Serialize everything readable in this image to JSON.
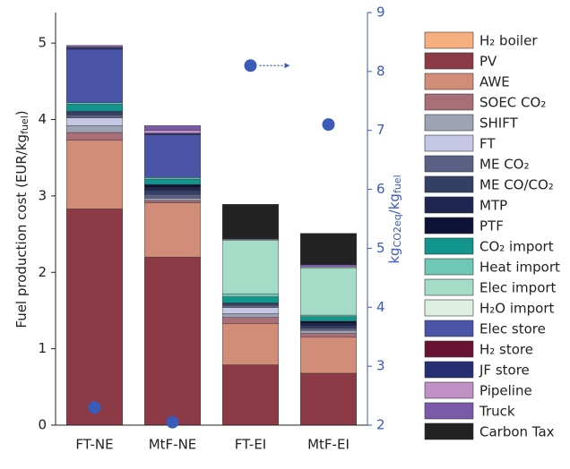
{
  "chart_data": {
    "type": "stacked_bar",
    "ylabel": [
      "Fuel production cost (EUR/kg",
      "fuel",
      ")"
    ],
    "y2label": [
      "kg",
      "CO2eq",
      "/kg",
      "fuel"
    ],
    "categories": [
      "FT-NE",
      "MtF-NE",
      "FT-EI",
      "MtF-EI"
    ],
    "ylim": [
      0,
      5.4
    ],
    "yticks": [
      0,
      1,
      2,
      3,
      4,
      5
    ],
    "y2lim": [
      2,
      9
    ],
    "y2ticks": [
      2,
      3,
      4,
      5,
      6,
      7,
      8,
      9
    ],
    "y2color": "#3a5bb8",
    "series": [
      {
        "name": "H₂ boiler",
        "color": "#f6b07f",
        "values": [
          0,
          0,
          0,
          0
        ]
      },
      {
        "name": "PV",
        "color": "#8c3a46",
        "values": [
          2.83,
          2.2,
          0.79,
          0.68
        ]
      },
      {
        "name": "AWE",
        "color": "#d18d78",
        "values": [
          0.9,
          0.71,
          0.54,
          0.47
        ]
      },
      {
        "name": "SOEC CO₂",
        "color": "#a96f79",
        "values": [
          0.1,
          0.03,
          0.08,
          0.05
        ]
      },
      {
        "name": "SHIFT",
        "color": "#9ea3b4",
        "values": [
          0.09,
          0.03,
          0.05,
          0.04
        ]
      },
      {
        "name": "FT",
        "color": "#c5c7e4",
        "values": [
          0.1,
          0,
          0.08,
          0
        ]
      },
      {
        "name": "ME CO₂",
        "color": "#5a6185",
        "values": [
          0.04,
          0.05,
          0.03,
          0.03
        ]
      },
      {
        "name": "ME CO/CO₂",
        "color": "#343f66",
        "values": [
          0.05,
          0.05,
          0.03,
          0.03
        ]
      },
      {
        "name": "MTP",
        "color": "#1e2650",
        "values": [
          0,
          0.04,
          0,
          0.03
        ]
      },
      {
        "name": "PTF",
        "color": "#0e1236",
        "values": [
          0,
          0.04,
          0,
          0.03
        ]
      },
      {
        "name": "CO₂ import",
        "color": "#12958d",
        "values": [
          0.09,
          0.07,
          0.08,
          0.06
        ]
      },
      {
        "name": "Heat import",
        "color": "#6ec8b5",
        "values": [
          0.02,
          0.02,
          0.04,
          0.02
        ]
      },
      {
        "name": "Elec import",
        "color": "#a5dcc8",
        "values": [
          0,
          0,
          0.7,
          0.62
        ]
      },
      {
        "name": "H₂O import",
        "color": "#dcefe0",
        "values": [
          0,
          0,
          0.01,
          0.01
        ]
      },
      {
        "name": "Elec store",
        "color": "#4a55a8",
        "values": [
          0.7,
          0.56,
          0,
          0
        ]
      },
      {
        "name": "H₂ store",
        "color": "#6a1232",
        "values": [
          0,
          0,
          0,
          0
        ]
      },
      {
        "name": "JF store",
        "color": "#252e70",
        "values": [
          0.02,
          0.02,
          0,
          0
        ]
      },
      {
        "name": "Pipeline",
        "color": "#c08fc4",
        "values": [
          0.01,
          0.04,
          0,
          0
        ]
      },
      {
        "name": "Truck",
        "color": "#7a5aa8",
        "values": [
          0.02,
          0.06,
          0.01,
          0.03
        ]
      },
      {
        "name": "Carbon Tax",
        "color": "#222222",
        "values": [
          0,
          0,
          0.45,
          0.41
        ]
      }
    ],
    "points": {
      "axis": "y2",
      "color": "#3a5bb8",
      "values": [
        2.3,
        2.05,
        8.1,
        7.1
      ]
    }
  }
}
